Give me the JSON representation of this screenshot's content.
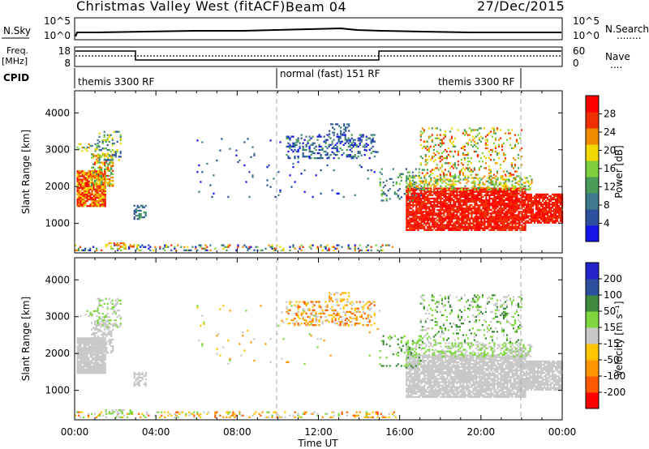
{
  "header": {
    "title": "Christmas Valley West (fitACF)",
    "beam": "Beam 04",
    "date": "27/Dec/2015"
  },
  "strip_nsky": {
    "left_label": "N.Sky",
    "left_ticks": [
      "10^5",
      "10^0"
    ],
    "right_ticks": [
      "10^5",
      "10^0"
    ],
    "right_label": "N.Search",
    "right_line": "........"
  },
  "strip_freq": {
    "left_label_1": "Freq.",
    "left_label_2": "[MHz]",
    "left_ticks": [
      "18",
      "8"
    ],
    "right_ticks": [
      "60",
      "0"
    ],
    "right_label": "Nave",
    "right_line": "...."
  },
  "cpid": {
    "label": "CPID",
    "segments": [
      "themis 3300 RF",
      "normal (fast) 151 RF",
      "themis 3300 RF"
    ]
  },
  "colors": {
    "power": [
      "#1414e6",
      "#2c4f9e",
      "#3f7a8c",
      "#4a9a5a",
      "#7fcf3f",
      "#f0d800",
      "#f08c00",
      "#f03000",
      "#ff0000"
    ],
    "velocity": [
      "#ff0000",
      "#ff5a00",
      "#ff9600",
      "#ffc400",
      "#c8c8c8",
      "#7fd63f",
      "#3f8a3f",
      "#2c4f9e",
      "#2424c8"
    ]
  },
  "chart_data": [
    {
      "type": "heatmap",
      "panel": "power",
      "ylabel": "Slant Range [km]",
      "yticks": [
        "4000",
        "3000",
        "2000",
        "1000"
      ],
      "ylim": [
        200,
        4600
      ],
      "xlim": [
        0,
        24
      ],
      "colorbar_label": "Power [dB]",
      "colorbar_ticks": [
        "28",
        "24",
        "20",
        "16",
        "12",
        "8",
        "4"
      ],
      "colorbar_range": [
        0,
        32
      ]
    },
    {
      "type": "heatmap",
      "panel": "velocity",
      "ylabel": "Slant Range [km]",
      "yticks": [
        "4000",
        "3000",
        "2000",
        "1000"
      ],
      "ylim": [
        200,
        4600
      ],
      "xlim": [
        0,
        24
      ],
      "xticks": [
        "00:00",
        "04:00",
        "08:00",
        "12:00",
        "16:00",
        "20:00",
        "00:00"
      ],
      "xlabel": "Time UT",
      "colorbar_label": "Velocity [m s⁻¹]",
      "colorbar_ticks": [
        "200",
        "100",
        "50",
        "15",
        "-15",
        "-50",
        "-100",
        "-200"
      ],
      "colorbar_range": [
        -250,
        250
      ]
    }
  ]
}
